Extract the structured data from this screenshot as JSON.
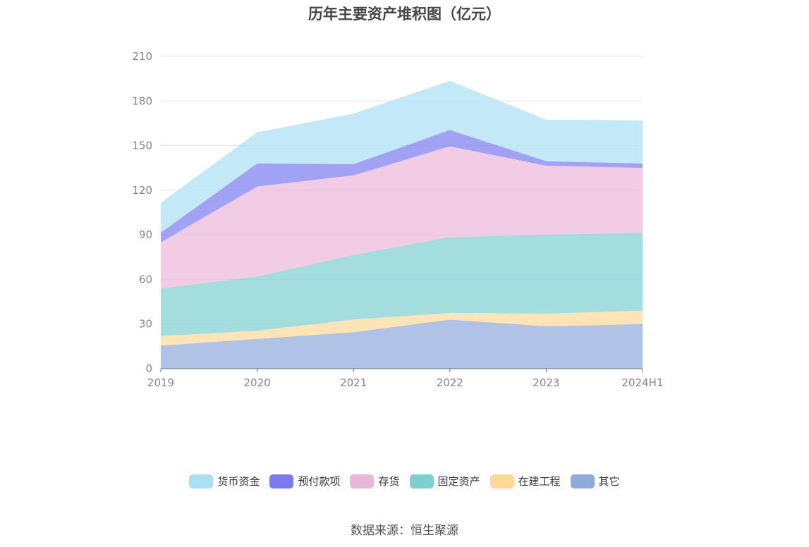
{
  "chart_data": {
    "type": "area",
    "stacked": true,
    "title": "历年主要资产堆积图（亿元）",
    "categories": [
      "2019",
      "2020",
      "2021",
      "2022",
      "2023",
      "2024H1"
    ],
    "ylim": [
      0,
      210
    ],
    "yticks": [
      0,
      30,
      60,
      90,
      120,
      150,
      180,
      210
    ],
    "grid": true,
    "legend_position": "bottom",
    "series": [
      {
        "name": "其它",
        "values": [
          15.5,
          20,
          24.5,
          33,
          28.5,
          30
        ],
        "color": "#8FAADC"
      },
      {
        "name": "在建工程",
        "values": [
          6.5,
          5.5,
          8.5,
          4.5,
          8.5,
          9
        ],
        "color": "#FFD898"
      },
      {
        "name": "固定资产",
        "values": [
          32,
          36.5,
          43.5,
          51,
          53,
          52.5
        ],
        "color": "#7ECFCF"
      },
      {
        "name": "存货",
        "values": [
          31,
          60.5,
          53.5,
          61,
          46.5,
          43.5
        ],
        "color": "#EBB7D9"
      },
      {
        "name": "预付款项",
        "values": [
          6.5,
          15.5,
          7.5,
          11,
          3,
          3
        ],
        "color": "#7B7BF0"
      },
      {
        "name": "货币资金",
        "values": [
          20,
          21,
          34,
          33,
          28,
          29
        ],
        "color": "#A9E0F7"
      }
    ],
    "legend_order": [
      "货币资金",
      "预付款项",
      "存货",
      "固定资产",
      "在建工程",
      "其它"
    ]
  },
  "source": "数据来源：恒生聚源"
}
